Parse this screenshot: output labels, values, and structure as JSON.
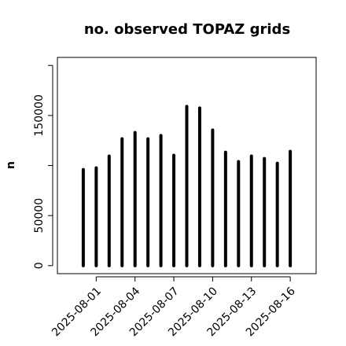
{
  "chart_data": {
    "type": "line",
    "style": "h",
    "title": "no. observed TOPAZ grids",
    "ylabel": "n",
    "x": [
      "2025-07-31",
      "2025-08-01",
      "2025-08-02",
      "2025-08-03",
      "2025-08-04",
      "2025-08-05",
      "2025-08-06",
      "2025-08-07",
      "2025-08-08",
      "2025-08-09",
      "2025-08-10",
      "2025-08-11",
      "2025-08-12",
      "2025-08-13",
      "2025-08-14",
      "2025-08-15",
      "2025-08-16"
    ],
    "values": [
      96000,
      97600,
      109400,
      126700,
      133000,
      126700,
      129900,
      110200,
      159000,
      157400,
      135400,
      113300,
      103900,
      109400,
      107000,
      102300,
      114100
    ],
    "color": "#000000",
    "xlim": [
      "2025-07-29",
      "2025-08-18"
    ],
    "xticks": [
      "2025-08-01",
      "2025-08-04",
      "2025-08-07",
      "2025-08-10",
      "2025-08-13",
      "2025-08-16"
    ],
    "xtick_label_colors": [
      "#000000",
      "#000000",
      "#228b22",
      "#000000",
      "#000000",
      "#000000"
    ],
    "ylim": [
      -8000,
      208000
    ],
    "yticks": [
      0,
      50000,
      {
        "value": 100000,
        "label": null
      },
      150000,
      {
        "value": 200000,
        "label": null
      }
    ]
  }
}
